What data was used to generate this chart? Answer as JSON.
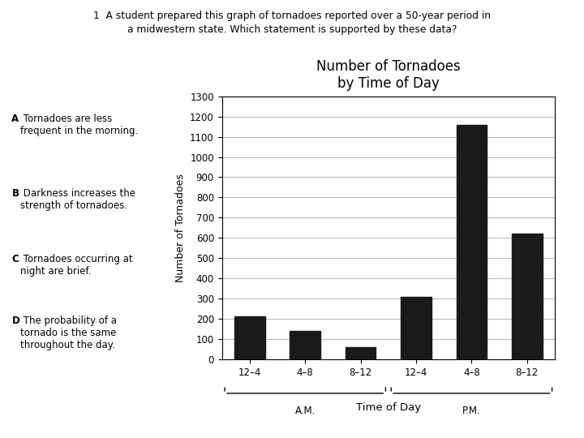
{
  "title": "Number of Tornadoes\nby Time of Day",
  "xlabel": "Time of Day",
  "ylabel": "Number of Tornadoes",
  "categories": [
    "12–4",
    "4–8",
    "8–12",
    "12–4",
    "4–8",
    "8–12"
  ],
  "values": [
    210,
    140,
    60,
    310,
    1160,
    620
  ],
  "bar_color": "#1a1a1a",
  "ylim": [
    0,
    1300
  ],
  "yticks": [
    0,
    100,
    200,
    300,
    400,
    500,
    600,
    700,
    800,
    900,
    1000,
    1100,
    1200,
    1300
  ],
  "background_color": "#ffffff",
  "am_label": "A.M.",
  "pm_label": "P.M.",
  "question_text_line1": "1  A student prepared this graph of tornadoes reported over a 50-year period in",
  "question_text_line2": "a midwestern state. Which statement is supported by these data?",
  "answer_A_bold": "A",
  "answer_A_rest": " Tornadoes are less\nfrequent in the morning.",
  "answer_B_bold": "B",
  "answer_B_rest": " Darkness increases the\nstrength of tornadoes.",
  "answer_C_bold": "C",
  "answer_C_rest": " Tornadoes occurring at\nnight are brief.",
  "answer_D_bold": "D",
  "answer_D_rest": " The probability of a\ntornado is the same\nthroughout the day."
}
